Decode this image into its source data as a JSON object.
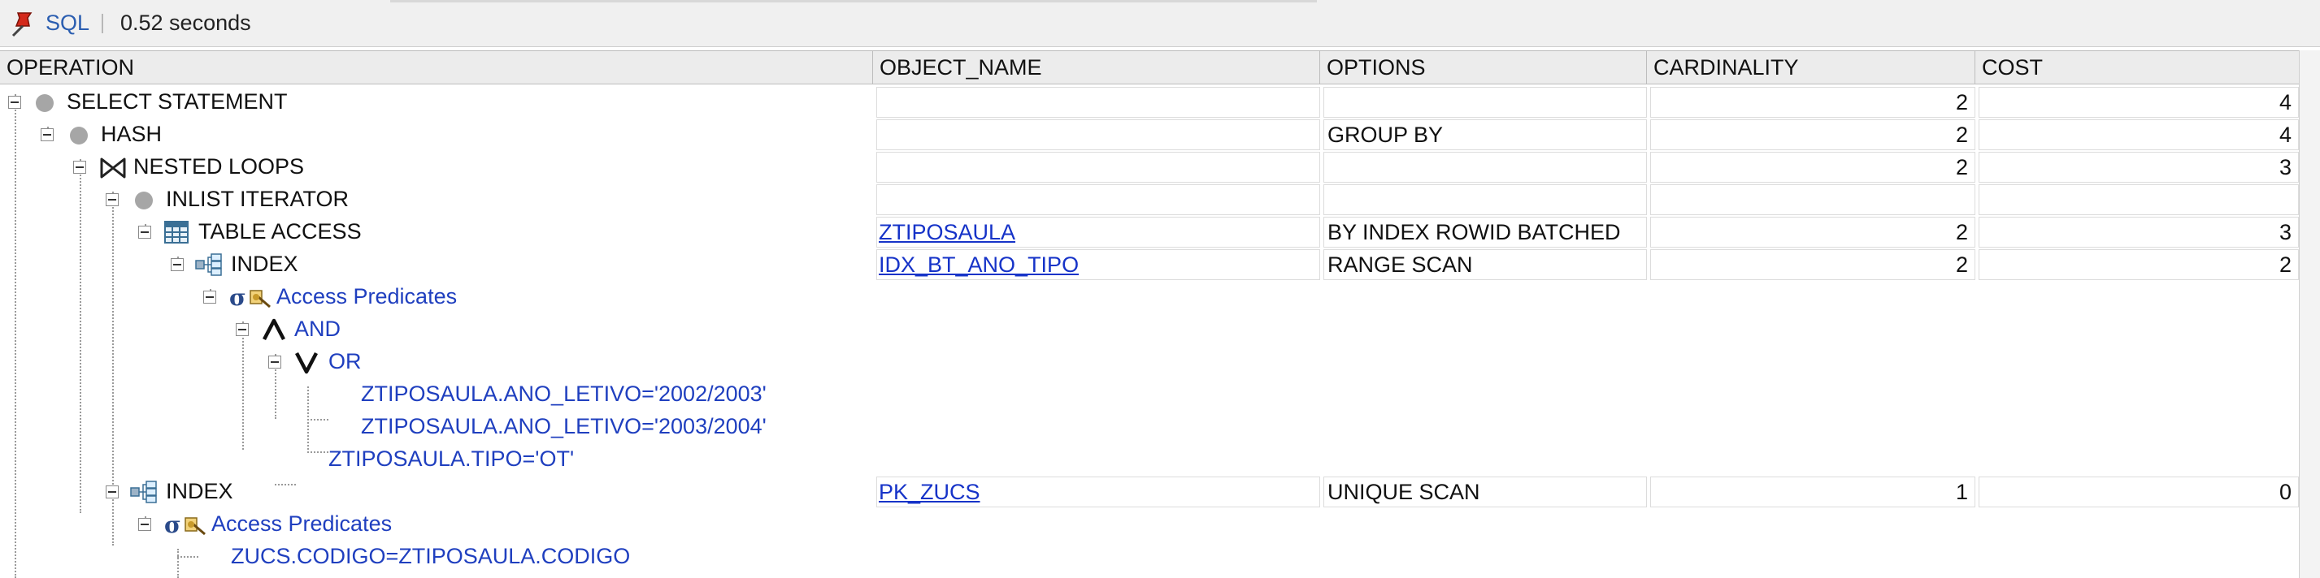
{
  "toolbar": {
    "sql_label": "SQL",
    "elapsed": "0.52 seconds",
    "pin_icon": "pushpin-icon"
  },
  "columns": [
    "OPERATION",
    "OBJECT_NAME",
    "OPTIONS",
    "CARDINALITY",
    "COST"
  ],
  "plan": [
    {
      "operation": "SELECT STATEMENT",
      "icon": "circle-icon",
      "object_name": "",
      "options": "",
      "cardinality": "2",
      "cost": "4"
    },
    {
      "operation": "HASH",
      "icon": "circle-icon",
      "object_name": "",
      "options": "GROUP BY",
      "cardinality": "2",
      "cost": "4"
    },
    {
      "operation": "NESTED LOOPS",
      "icon": "bowtie-icon",
      "object_name": "",
      "options": "",
      "cardinality": "2",
      "cost": "3"
    },
    {
      "operation": "INLIST ITERATOR",
      "icon": "circle-icon",
      "object_name": "",
      "options": "",
      "cardinality": "",
      "cost": ""
    },
    {
      "operation": "TABLE ACCESS",
      "icon": "table-icon",
      "object_name": "ZTIPOSAULA",
      "options": "BY INDEX ROWID BATCHED",
      "cardinality": "2",
      "cost": "3"
    },
    {
      "operation": "INDEX",
      "icon": "index-icon",
      "object_name": "IDX_BT_ANO_TIPO",
      "options": "RANGE SCAN",
      "cardinality": "2",
      "cost": "2"
    },
    {
      "operation": "Access Predicates",
      "icon": "filter-icon"
    },
    {
      "operation": "AND",
      "icon": "and-icon"
    },
    {
      "operation": "OR",
      "icon": "or-icon"
    },
    {
      "operation": "ZTIPOSAULA.ANO_LETIVO='2002/2003'"
    },
    {
      "operation": "ZTIPOSAULA.ANO_LETIVO='2003/2004'"
    },
    {
      "operation": "ZTIPOSAULA.TIPO='OT'"
    },
    {
      "operation": "INDEX",
      "icon": "index-icon",
      "object_name": "PK_ZUCS",
      "options": "UNIQUE SCAN",
      "cardinality": "1",
      "cost": "0"
    },
    {
      "operation": "Access Predicates",
      "icon": "filter-icon"
    },
    {
      "operation": "ZUCS.CODIGO=ZTIPOSAULA.CODIGO"
    }
  ]
}
